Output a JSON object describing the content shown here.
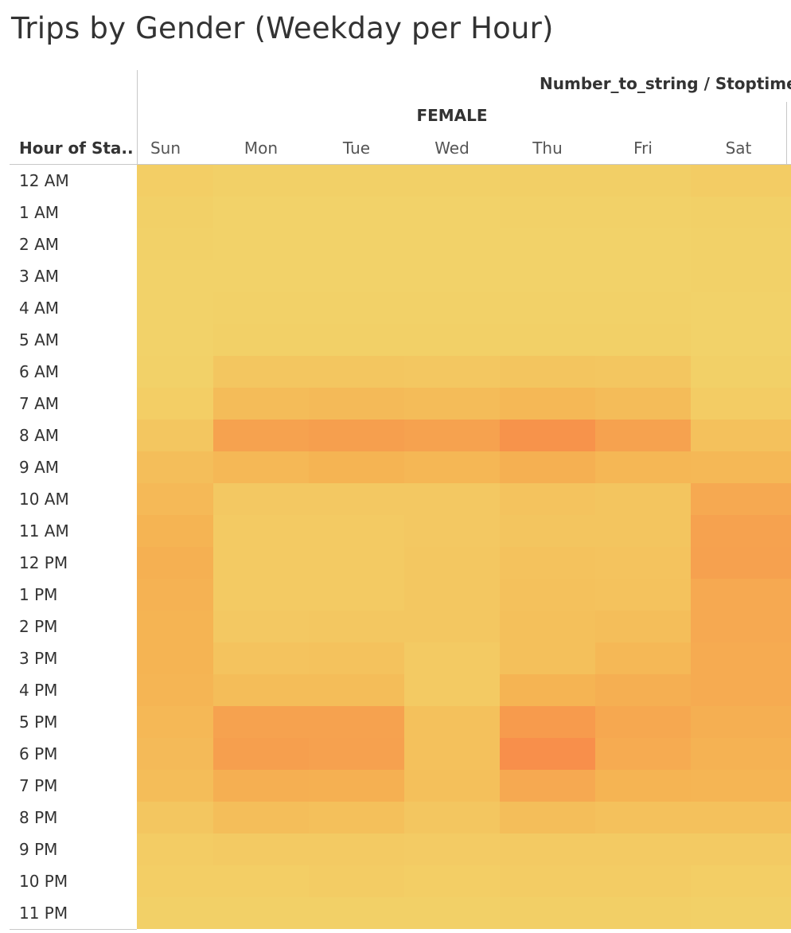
{
  "title": "Trips by Gender (Weekday per Hour)",
  "measure_header": "Number_to_string / Stoptime",
  "chart_data": {
    "type": "heatmap",
    "title": "Trips by Gender (Weekday per Hour)",
    "column_group_header": "Number_to_string / Stoptime",
    "gender": "FEMALE",
    "row_field": "Hour of Sta..",
    "columns": [
      "Sun",
      "Mon",
      "Tue",
      "Wed",
      "Thu",
      "Fri",
      "Sat"
    ],
    "rows": [
      "12 AM",
      "1 AM",
      "2 AM",
      "3 AM",
      "4 AM",
      "5 AM",
      "6 AM",
      "7 AM",
      "8 AM",
      "9 AM",
      "10 AM",
      "11 AM",
      "12 PM",
      "1 PM",
      "2 PM",
      "3 PM",
      "4 PM",
      "5 PM",
      "6 PM",
      "7 PM",
      "8 PM",
      "9 PM",
      "10 PM",
      "11 PM"
    ],
    "values": [
      [
        0.1,
        0.06,
        0.06,
        0.06,
        0.08,
        0.08,
        0.12
      ],
      [
        0.06,
        0.03,
        0.03,
        0.03,
        0.04,
        0.04,
        0.07
      ],
      [
        0.04,
        0.03,
        0.03,
        0.03,
        0.03,
        0.03,
        0.05
      ],
      [
        0.03,
        0.03,
        0.03,
        0.03,
        0.03,
        0.03,
        0.04
      ],
      [
        0.03,
        0.04,
        0.04,
        0.04,
        0.04,
        0.04,
        0.03
      ],
      [
        0.03,
        0.07,
        0.07,
        0.07,
        0.07,
        0.07,
        0.03
      ],
      [
        0.05,
        0.22,
        0.22,
        0.2,
        0.24,
        0.22,
        0.06
      ],
      [
        0.1,
        0.38,
        0.4,
        0.38,
        0.44,
        0.38,
        0.12
      ],
      [
        0.22,
        0.7,
        0.74,
        0.7,
        0.88,
        0.7,
        0.3
      ],
      [
        0.34,
        0.44,
        0.5,
        0.46,
        0.54,
        0.46,
        0.44
      ],
      [
        0.42,
        0.18,
        0.18,
        0.18,
        0.26,
        0.24,
        0.62
      ],
      [
        0.5,
        0.16,
        0.16,
        0.18,
        0.24,
        0.24,
        0.7
      ],
      [
        0.54,
        0.16,
        0.16,
        0.2,
        0.28,
        0.26,
        0.72
      ],
      [
        0.52,
        0.16,
        0.16,
        0.2,
        0.3,
        0.28,
        0.62
      ],
      [
        0.5,
        0.18,
        0.2,
        0.2,
        0.32,
        0.34,
        0.62
      ],
      [
        0.5,
        0.26,
        0.28,
        0.16,
        0.32,
        0.44,
        0.6
      ],
      [
        0.48,
        0.36,
        0.36,
        0.16,
        0.5,
        0.56,
        0.6
      ],
      [
        0.44,
        0.7,
        0.7,
        0.3,
        0.78,
        0.64,
        0.56
      ],
      [
        0.4,
        0.74,
        0.72,
        0.3,
        0.92,
        0.6,
        0.52
      ],
      [
        0.36,
        0.56,
        0.54,
        0.32,
        0.62,
        0.5,
        0.48
      ],
      [
        0.22,
        0.34,
        0.32,
        0.22,
        0.34,
        0.3,
        0.3
      ],
      [
        0.12,
        0.16,
        0.16,
        0.14,
        0.16,
        0.16,
        0.16
      ],
      [
        0.1,
        0.1,
        0.12,
        0.1,
        0.12,
        0.12,
        0.1
      ],
      [
        0.07,
        0.06,
        0.07,
        0.06,
        0.08,
        0.08,
        0.07
      ]
    ],
    "value_note": "relative color intensity (0 = light yellow, 1 = dark orange)",
    "color_scale": {
      "low": "#f2d46a",
      "mid": "#f5b453",
      "high": "#f88849"
    }
  }
}
